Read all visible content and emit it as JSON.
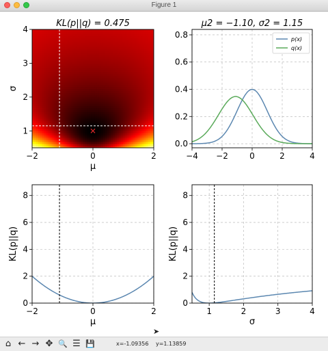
{
  "window": {
    "title": "Figure 1"
  },
  "toolbar": {
    "buttons": [
      {
        "name": "home-icon",
        "glyph": "⌂"
      },
      {
        "name": "back-icon",
        "glyph": "←"
      },
      {
        "name": "forward-icon",
        "glyph": "→"
      },
      {
        "name": "pan-icon",
        "glyph": "✥"
      },
      {
        "name": "zoom-icon",
        "glyph": "🔍"
      },
      {
        "name": "configure-subplots-icon",
        "glyph": "☰"
      },
      {
        "name": "save-icon",
        "glyph": "💾"
      }
    ],
    "x_readout": "x=-1.09356",
    "y_readout": "y=1.13859"
  },
  "chart_data": [
    {
      "type": "heatmap",
      "title": "KL(p||q) = 0.475",
      "title_math": true,
      "xlabel": "μ",
      "ylabel": "σ",
      "xlim": [
        -2,
        2
      ],
      "ylim": [
        0.5,
        4
      ],
      "xticks": [
        -2,
        0,
        2
      ],
      "yticks": [
        1,
        2,
        3,
        4
      ],
      "colormap": "hot",
      "crosshair": {
        "x": -1.1,
        "y": 1.15,
        "style": "dashed",
        "color": "#ffffff"
      },
      "marker": {
        "x": 0,
        "y": 1,
        "symbol": "x",
        "color": "#d62728"
      },
      "p_params": {
        "mu": 0,
        "sigma": 1
      },
      "grid": false
    },
    {
      "type": "line",
      "title": "μ2 = −1.10, σ2 = 1.15",
      "xlim": [
        -4,
        4
      ],
      "ylim": [
        -0.03,
        0.84
      ],
      "xticks": [
        -4,
        -2,
        0,
        2,
        4
      ],
      "yticks": [
        0.0,
        0.2,
        0.4,
        0.6,
        0.8
      ],
      "grid": true,
      "legend": "top-right",
      "series": [
        {
          "name": "p(x)",
          "color": "#5b87b0",
          "mu": 0,
          "sigma": 1
        },
        {
          "name": "q(x)",
          "color": "#5aaa5a",
          "mu": -1.1,
          "sigma": 1.15
        }
      ]
    },
    {
      "type": "line",
      "xlabel": "μ",
      "ylabel": "KL(p||q)",
      "xlim": [
        -2,
        2
      ],
      "ylim": [
        0,
        8.8
      ],
      "xticks": [
        -2,
        0,
        2
      ],
      "yticks": [
        0,
        2,
        4,
        6,
        8
      ],
      "grid": true,
      "vline": {
        "x": -1.1,
        "style": "dashed",
        "color": "#000000"
      },
      "series": [
        {
          "color": "#5b87b0",
          "fixed_sigma": 1,
          "vary": "mu"
        }
      ]
    },
    {
      "type": "line",
      "xlabel": "σ",
      "ylabel": "KL(p||q)",
      "xlim": [
        0.5,
        4
      ],
      "ylim": [
        0,
        8.8
      ],
      "xticks": [
        1,
        2,
        3,
        4
      ],
      "yticks": [
        0,
        2,
        4,
        6,
        8
      ],
      "grid": true,
      "vline": {
        "x": 1.15,
        "style": "dashed",
        "color": "#000000"
      },
      "series": [
        {
          "color": "#5b87b0",
          "fixed_mu": 0,
          "vary": "sigma"
        }
      ]
    }
  ]
}
